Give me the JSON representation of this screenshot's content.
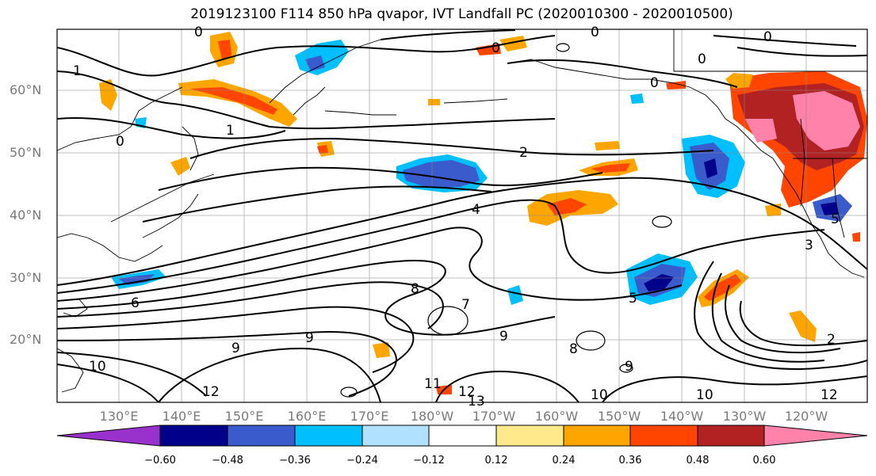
{
  "title": "2019123100 F114 850 hPa qvapor, IVT Landfall PC (2020010300 - 2020010500)",
  "map": {
    "lat_labels": [
      "60°N",
      "50°N",
      "40°N",
      "30°N",
      "20°N"
    ],
    "lon_labels": [
      "130°E",
      "140°E",
      "150°E",
      "160°E",
      "170°E",
      "180°W",
      "170°W",
      "160°W",
      "150°W",
      "140°W",
      "130°W",
      "120°W"
    ],
    "contour_labels": [
      "0",
      "0",
      "0",
      "0",
      "0",
      "0",
      "0",
      "1",
      "1",
      "2",
      "4",
      "6",
      "7",
      "8",
      "8",
      "9",
      "9",
      "9",
      "9",
      "10",
      "10",
      "10",
      "11",
      "12",
      "12",
      "13",
      "2",
      "3",
      "5",
      "5",
      "12"
    ]
  },
  "colorbar": {
    "tick_labels": [
      "−0.60",
      "−0.48",
      "−0.36",
      "−0.24",
      "−0.12",
      "0.12",
      "0.24",
      "0.36",
      "0.48",
      "0.60"
    ],
    "colors": [
      "#9932cc",
      "#00008b",
      "#3a5bcc",
      "#00bfff",
      "#b0e2ff",
      "#ffffff",
      "#ffe98a",
      "#ffa500",
      "#ff4500",
      "#b22222",
      "#ff82ab"
    ]
  }
}
